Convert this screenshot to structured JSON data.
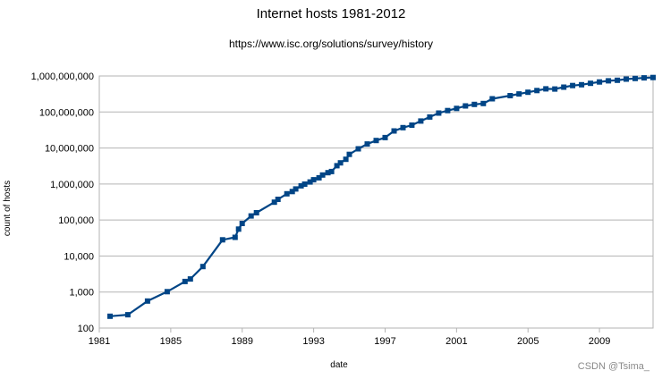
{
  "chart_data": {
    "type": "line",
    "title": "Internet hosts 1981-2012",
    "subtitle": "https://www.isc.org/solutions/survey/history",
    "xlabel": "date",
    "ylabel": "count of hosts",
    "y_scale": "log",
    "xlim": [
      1981,
      2012
    ],
    "ylim": [
      100,
      1000000000
    ],
    "x_ticks": [
      1981,
      1985,
      1989,
      1993,
      1997,
      2001,
      2005,
      2009
    ],
    "x_tick_labels": [
      "1981",
      "1985",
      "1989",
      "1993",
      "1997",
      "2001",
      "2005",
      "2009"
    ],
    "y_ticks": [
      100,
      1000,
      10000,
      100000,
      1000000,
      10000000,
      100000000,
      1000000000
    ],
    "y_tick_labels": [
      "100",
      "1,000",
      "10,000",
      "100,000",
      "1,000,000",
      "10,000,000",
      "100,000,000",
      "1,000,000,000"
    ],
    "grid": true,
    "legend": "none",
    "line_color": "#004586",
    "series": [
      {
        "x": [
          1981.6,
          1982.6,
          1983.7,
          1984.8,
          1985.8,
          1986.1,
          1986.8,
          1987.9,
          1988.6,
          1988.8,
          1989.0,
          1989.5,
          1989.8,
          1990.8,
          1991.0,
          1991.5,
          1991.8,
          1992.0,
          1992.3,
          1992.5,
          1992.8,
          1993.0,
          1993.3,
          1993.5,
          1993.8,
          1994.0,
          1994.3,
          1994.5,
          1994.8,
          1995.0,
          1995.5,
          1996.0,
          1996.5,
          1997.0,
          1997.5,
          1998.0,
          1998.5,
          1999.0,
          1999.5,
          2000.0,
          2000.5,
          2001.0,
          2001.5,
          2002.0,
          2002.5,
          2003.0,
          2004.0,
          2004.5,
          2005.0,
          2005.5,
          2006.0,
          2006.5,
          2007.0,
          2007.5,
          2008.0,
          2008.5,
          2009.0,
          2009.5,
          2010.0,
          2010.5,
          2011.0,
          2011.5,
          2012.0
        ],
        "y": [
          213,
          235,
          562,
          1024,
          1961,
          2308,
          5089,
          28174,
          33000,
          56000,
          80000,
          130000,
          159000,
          313000,
          376000,
          535000,
          617000,
          727000,
          890000,
          992000,
          1136000,
          1313000,
          1486000,
          1776000,
          2056000,
          2217000,
          3212000,
          3864000,
          4852000,
          6642000,
          9472000,
          12881000,
          16146000,
          19540000,
          29670000,
          36739000,
          43230000,
          56218000,
          72398000,
          93047000,
          109574000,
          125888000,
          147344000,
          162128000,
          171638000,
          233101000,
          285139000,
          317646000,
          353284000,
          394991000,
          439286000,
          433193000,
          489774000,
          541677000,
          570937000,
          625226000,
          681064000,
          732740000,
          758081000,
          818374000,
          849869000,
          888239000,
          908585000
        ]
      }
    ]
  },
  "watermark": "CSDN @Tsima_"
}
